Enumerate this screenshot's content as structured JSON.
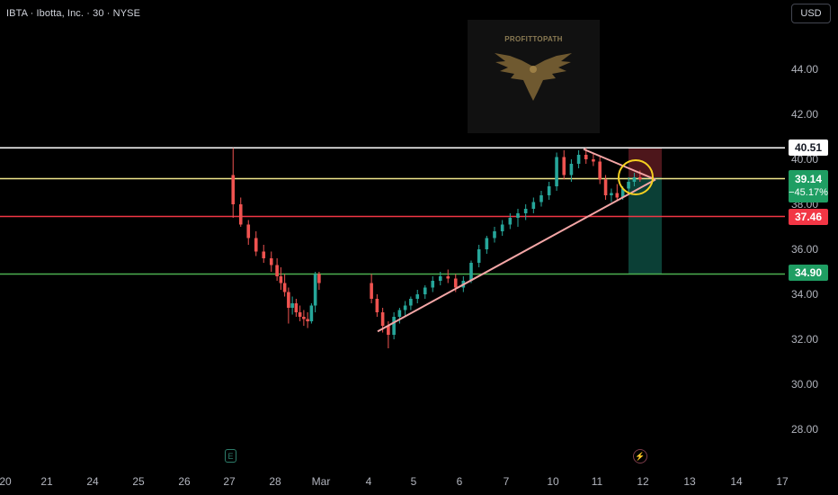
{
  "header": {
    "title": "IBTA · Ibotta, Inc. · 30 · NYSE",
    "currency": "USD"
  },
  "watermark": {
    "text": "PROFITTOPATH",
    "icon": "eagle-icon"
  },
  "colors": {
    "up": "#26a69a",
    "down": "#ef5350",
    "white_line": "#ffffff",
    "yellow_line": "#f0e68c",
    "red_line": "#f23645",
    "green_line": "#4caf50",
    "trendline": "#f4a6a6",
    "ellipse": "#f5d020"
  },
  "chart_data": {
    "type": "candlestick",
    "y_range": [
      27,
      46.5
    ],
    "y_ticks": [
      "44.00",
      "42.00",
      "40.00",
      "38.00",
      "36.00",
      "34.00",
      "32.00",
      "30.00",
      "28.00"
    ],
    "x_ticks": [
      "20",
      "21",
      "24",
      "25",
      "26",
      "27",
      "28",
      "Mar",
      "4",
      "5",
      "6",
      "7",
      "10",
      "11",
      "12",
      "13",
      "14",
      "17"
    ],
    "price_lines": [
      {
        "label": "40.51",
        "value": 40.51,
        "color": "#ffffff"
      },
      {
        "label": "39.14",
        "value": 39.14,
        "color": "#f0e68c"
      },
      {
        "label": "37.46",
        "value": 37.46,
        "color": "#f23645"
      },
      {
        "label": "34.90",
        "value": 34.9,
        "color": "#4caf50"
      }
    ],
    "current_price": "39.14",
    "current_change": "−45.17%",
    "candles_approx": [
      [
        27,
        39.3,
        40.5,
        37.4,
        38.0
      ],
      [
        27,
        38.0,
        38.3,
        37.0,
        37.1
      ],
      [
        27,
        37.1,
        37.3,
        36.2,
        36.5
      ],
      [
        27,
        36.5,
        36.8,
        35.7,
        35.9
      ],
      [
        27,
        35.9,
        36.2,
        35.4,
        35.6
      ],
      [
        27,
        35.6,
        35.9,
        35.0,
        35.3
      ],
      [
        28,
        35.3,
        35.6,
        34.6,
        34.8
      ],
      [
        28,
        34.8,
        35.2,
        34.2,
        34.5
      ],
      [
        28,
        34.5,
        34.9,
        33.9,
        34.1
      ],
      [
        28,
        34.1,
        34.3,
        32.7,
        33.4
      ],
      [
        28,
        33.4,
        33.9,
        33.1,
        33.6
      ],
      [
        28,
        33.6,
        33.8,
        33.0,
        33.2
      ],
      [
        28,
        33.2,
        33.5,
        32.8,
        33.0
      ],
      [
        28,
        33.0,
        33.3,
        32.6,
        32.9
      ],
      [
        28,
        32.9,
        33.2,
        32.5,
        32.8
      ],
      [
        28,
        32.8,
        33.6,
        32.7,
        33.5
      ],
      [
        28,
        33.5,
        35.0,
        33.2,
        34.9
      ],
      [
        28,
        34.9,
        35.0,
        34.2,
        34.5
      ],
      [
        4,
        34.5,
        34.9,
        33.6,
        33.8
      ],
      [
        4,
        33.8,
        34.0,
        33.0,
        33.2
      ],
      [
        4,
        33.2,
        33.4,
        32.3,
        32.6
      ],
      [
        4,
        32.6,
        32.8,
        31.6,
        32.2
      ],
      [
        4,
        32.2,
        33.2,
        32.0,
        33.0
      ],
      [
        4,
        33.0,
        33.4,
        32.7,
        33.3
      ],
      [
        4,
        33.3,
        33.7,
        33.0,
        33.5
      ],
      [
        4,
        33.5,
        33.9,
        33.3,
        33.8
      ],
      [
        5,
        33.8,
        34.2,
        33.6,
        34.0
      ],
      [
        5,
        34.0,
        34.4,
        33.8,
        34.3
      ],
      [
        5,
        34.3,
        34.8,
        34.1,
        34.6
      ],
      [
        5,
        34.6,
        35.0,
        34.4,
        34.8
      ],
      [
        5,
        34.8,
        35.1,
        34.5,
        34.7
      ],
      [
        5,
        34.7,
        34.9,
        34.1,
        34.3
      ],
      [
        6,
        34.3,
        34.8,
        34.1,
        34.6
      ],
      [
        6,
        34.6,
        35.5,
        34.5,
        35.4
      ],
      [
        6,
        35.4,
        36.2,
        35.2,
        36.0
      ],
      [
        6,
        36.0,
        36.6,
        35.8,
        36.5
      ],
      [
        6,
        36.5,
        37.0,
        36.3,
        36.8
      ],
      [
        6,
        36.8,
        37.3,
        36.6,
        37.1
      ],
      [
        7,
        37.1,
        37.6,
        36.9,
        37.4
      ],
      [
        7,
        37.4,
        37.8,
        37.0,
        37.6
      ],
      [
        7,
        37.6,
        38.0,
        37.3,
        37.8
      ],
      [
        7,
        37.8,
        38.3,
        37.6,
        38.1
      ],
      [
        7,
        38.1,
        38.6,
        37.9,
        38.4
      ],
      [
        7,
        38.4,
        39.0,
        38.2,
        38.8
      ],
      [
        10,
        38.8,
        40.3,
        38.6,
        40.1
      ],
      [
        10,
        40.1,
        40.4,
        39.1,
        39.3
      ],
      [
        10,
        39.3,
        40.0,
        39.0,
        39.8
      ],
      [
        10,
        39.8,
        40.4,
        39.6,
        40.2
      ],
      [
        10,
        40.2,
        40.5,
        39.8,
        40.0
      ],
      [
        10,
        40.0,
        40.3,
        39.7,
        39.9
      ],
      [
        11,
        39.9,
        40.1,
        38.9,
        39.1
      ],
      [
        11,
        39.1,
        39.3,
        38.2,
        38.4
      ],
      [
        11,
        38.4,
        38.7,
        38.1,
        38.5
      ],
      [
        11,
        38.5,
        38.9,
        38.2,
        38.3
      ],
      [
        11,
        38.3,
        38.8,
        38.2,
        38.7
      ],
      [
        11,
        38.7,
        39.2,
        38.5,
        39.0
      ],
      [
        11,
        39.0,
        39.4,
        38.8,
        39.2
      ],
      [
        11,
        39.2,
        39.5,
        39.0,
        39.1
      ]
    ],
    "trendlines": [
      {
        "from": [
          "4",
          32.35
        ],
        "to": [
          "12",
          39.1
        ]
      },
      {
        "from": [
          "10",
          40.45
        ],
        "to": [
          "12",
          39.1
        ]
      }
    ]
  }
}
